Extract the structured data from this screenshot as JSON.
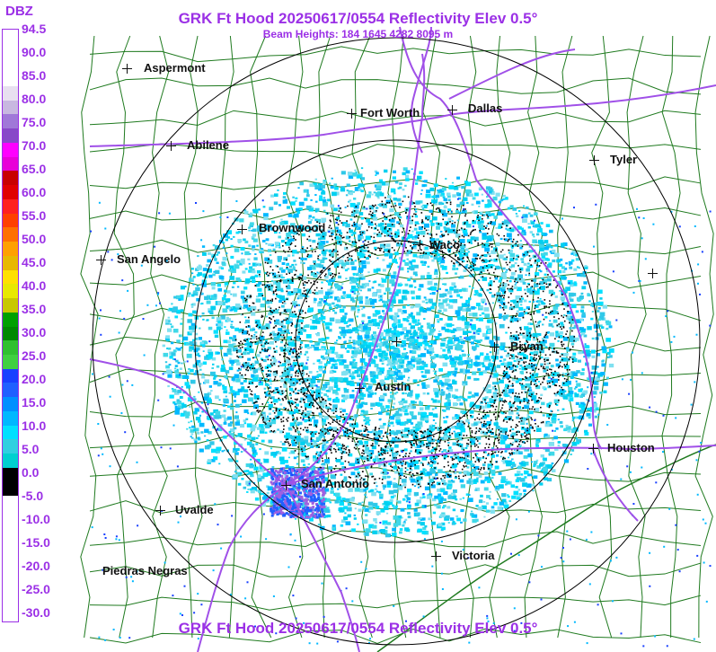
{
  "header": {
    "title": "GRK Ft Hood 20250617/0554 Reflectivity Elev 0.5°",
    "subtitle": "Beam Heights: 184 1645 4282 8095 m",
    "footer_title": "GRK Ft Hood 20250617/0554 Reflectivity Elev 0.5°"
  },
  "legend": {
    "unit": "DBZ",
    "ticks": [
      "94.5",
      "90.0",
      "85.0",
      "80.0",
      "75.0",
      "70.0",
      "65.0",
      "60.0",
      "55.0",
      "50.0",
      "45.0",
      "40.0",
      "35.0",
      "30.0",
      "25.0",
      "20.0",
      "15.0",
      "10.0",
      "5.0",
      "0.0",
      "-5.0",
      "-10.0",
      "-15.0",
      "-20.0",
      "-25.0",
      "-30.0"
    ],
    "colors": [
      "#ffffff",
      "#ffffff",
      "#ffffff",
      "#ffffff",
      "#e8e0f0",
      "#c8b8e0",
      "#a078d8",
      "#8848c8",
      "#ff00ff",
      "#e800d8",
      "#c80000",
      "#e00000",
      "#ff2020",
      "#ff4000",
      "#ff7000",
      "#ffa000",
      "#e8b800",
      "#ffe000",
      "#e8e800",
      "#c8c800",
      "#00a000",
      "#008800",
      "#30c030",
      "#40d040",
      "#1840ff",
      "#2060ff",
      "#0090ff",
      "#00b8ff",
      "#00e0ff",
      "#30d0e0",
      "#00d0d0",
      "#000000",
      "#000000",
      "#ffffff",
      "#ffffff",
      "#ffffff",
      "#ffffff",
      "#ffffff",
      "#ffffff",
      "#ffffff",
      "#ffffff",
      "#ffffff"
    ]
  },
  "cities": [
    {
      "name": "Aspermont"
    },
    {
      "name": "Fort Worth"
    },
    {
      "name": "Dallas"
    },
    {
      "name": "Abilene"
    },
    {
      "name": "Tyler"
    },
    {
      "name": "Brownwood"
    },
    {
      "name": "Waco"
    },
    {
      "name": "San Angelo"
    },
    {
      "name": "Bryan"
    },
    {
      "name": "Austin"
    },
    {
      "name": "Houston"
    },
    {
      "name": "San Antonio"
    },
    {
      "name": "Uvalde"
    },
    {
      "name": "Victoria"
    },
    {
      "name": "Piedras Negras"
    }
  ],
  "colors": {
    "accent": "#9b30e6",
    "county_lines": "#1f7a1f",
    "highways": "#a050e8",
    "range_rings": "#000000"
  }
}
